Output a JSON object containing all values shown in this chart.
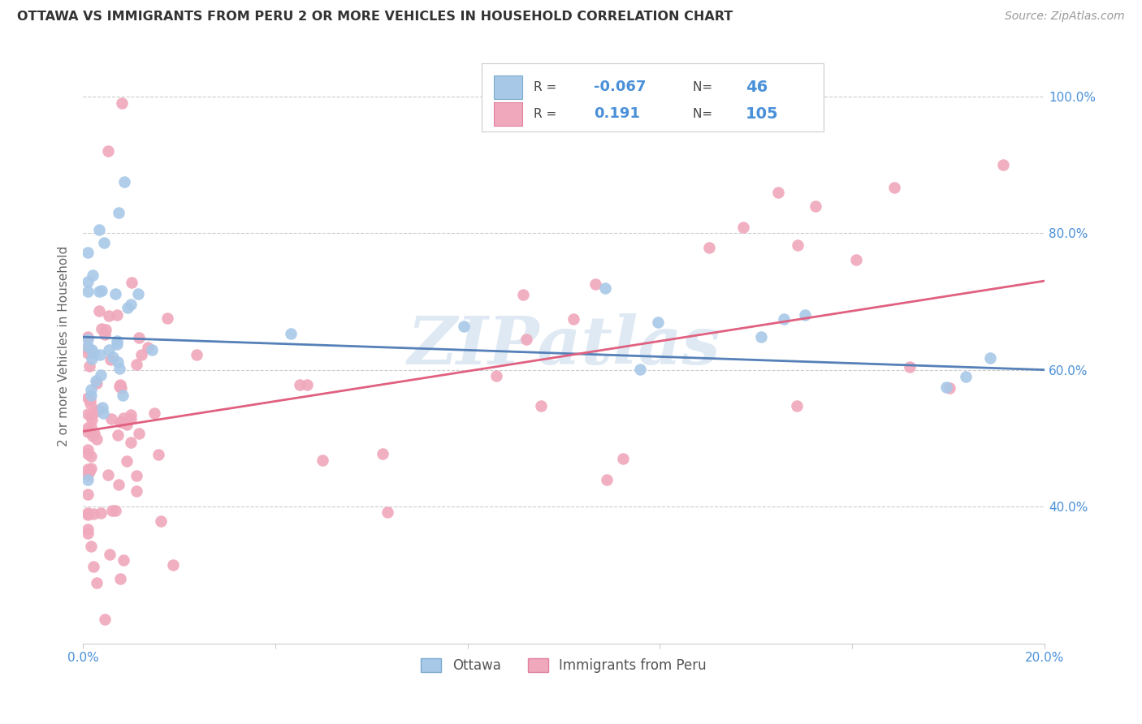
{
  "title": "OTTAWA VS IMMIGRANTS FROM PERU 2 OR MORE VEHICLES IN HOUSEHOLD CORRELATION CHART",
  "source": "Source: ZipAtlas.com",
  "ylabel": "2 or more Vehicles in Household",
  "xlim": [
    0.0,
    0.2
  ],
  "ylim": [
    0.2,
    1.07
  ],
  "color_ottawa": "#a8c8e8",
  "color_ottawa_border": "#7aabcc",
  "color_ottawa_line": "#5580b8",
  "color_peru": "#f0a8bc",
  "color_peru_border": "#e080a0",
  "color_peru_line": "#e06080",
  "color_text_blue": "#4a90d9",
  "color_axis_text": "#4a90d9",
  "color_grid": "#cccccc",
  "watermark": "ZIPatlas",
  "legend_R1": "-0.067",
  "legend_N1": "46",
  "legend_R2": "0.191",
  "legend_N2": "105",
  "ottawa_intercept": 0.648,
  "ottawa_slope": -0.22,
  "peru_intercept": 0.51,
  "peru_slope": 1.1
}
